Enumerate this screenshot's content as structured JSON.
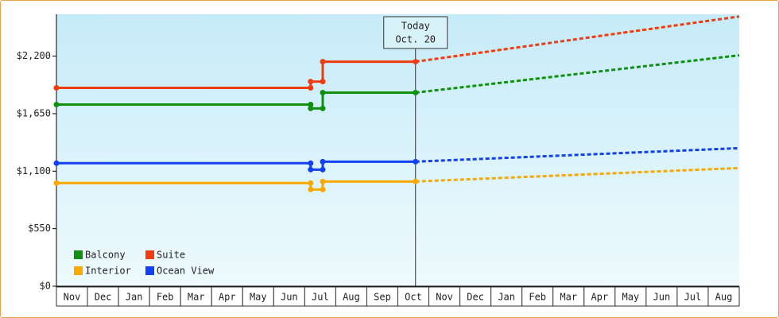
{
  "chart_data": {
    "type": "line",
    "categories": [
      "Nov",
      "Dec",
      "Jan",
      "Feb",
      "Mar",
      "Apr",
      "May",
      "Jun",
      "Jul",
      "Aug",
      "Sep",
      "Oct",
      "Nov",
      "Dec",
      "Jan",
      "Feb",
      "Mar",
      "Apr",
      "May",
      "Jun",
      "Jul",
      "Aug"
    ],
    "xlim": [
      0,
      22
    ],
    "ylim": [
      0,
      2600
    ],
    "yticks": [
      {
        "value": 0,
        "label": "$0"
      },
      {
        "value": 550,
        "label": "$550"
      },
      {
        "value": 1100,
        "label": "$1,100"
      },
      {
        "value": 1650,
        "label": "$1,650"
      },
      {
        "value": 2200,
        "label": "$2,200"
      }
    ],
    "annotation": {
      "x": 11.57,
      "lines": [
        "Today",
        "Oct. 20"
      ]
    },
    "series": [
      {
        "name": "Balcony",
        "color": "#109010",
        "x": [
          0,
          8.19,
          8.19,
          8.58,
          8.58,
          11.57
        ],
        "values": [
          1737,
          1737,
          1700,
          1700,
          1851,
          1851
        ],
        "forecast": {
          "x": [
            11.57,
            22
          ],
          "values": [
            1851,
            2208
          ]
        }
      },
      {
        "name": "Suite",
        "color": "#f03c10",
        "x": [
          0,
          8.19,
          8.19,
          8.58,
          8.58,
          11.57
        ],
        "values": [
          1897,
          1897,
          1957,
          1957,
          2147,
          2147
        ],
        "forecast": {
          "x": [
            11.57,
            22
          ],
          "values": [
            2147,
            2579
          ]
        }
      },
      {
        "name": "Interior",
        "color": "#f8a800",
        "x": [
          0,
          8.19,
          8.19,
          8.58,
          8.58,
          11.57
        ],
        "values": [
          986,
          986,
          925,
          925,
          1001,
          1001
        ],
        "forecast": {
          "x": [
            11.57,
            22
          ],
          "values": [
            1001,
            1130
          ]
        }
      },
      {
        "name": "Ocean View",
        "color": "#1040f0",
        "x": [
          0,
          8.19,
          8.19,
          8.58,
          8.58,
          11.57
        ],
        "values": [
          1176,
          1176,
          1115,
          1115,
          1191,
          1191
        ],
        "forecast": {
          "x": [
            11.57,
            22
          ],
          "values": [
            1191,
            1320
          ]
        }
      }
    ]
  }
}
